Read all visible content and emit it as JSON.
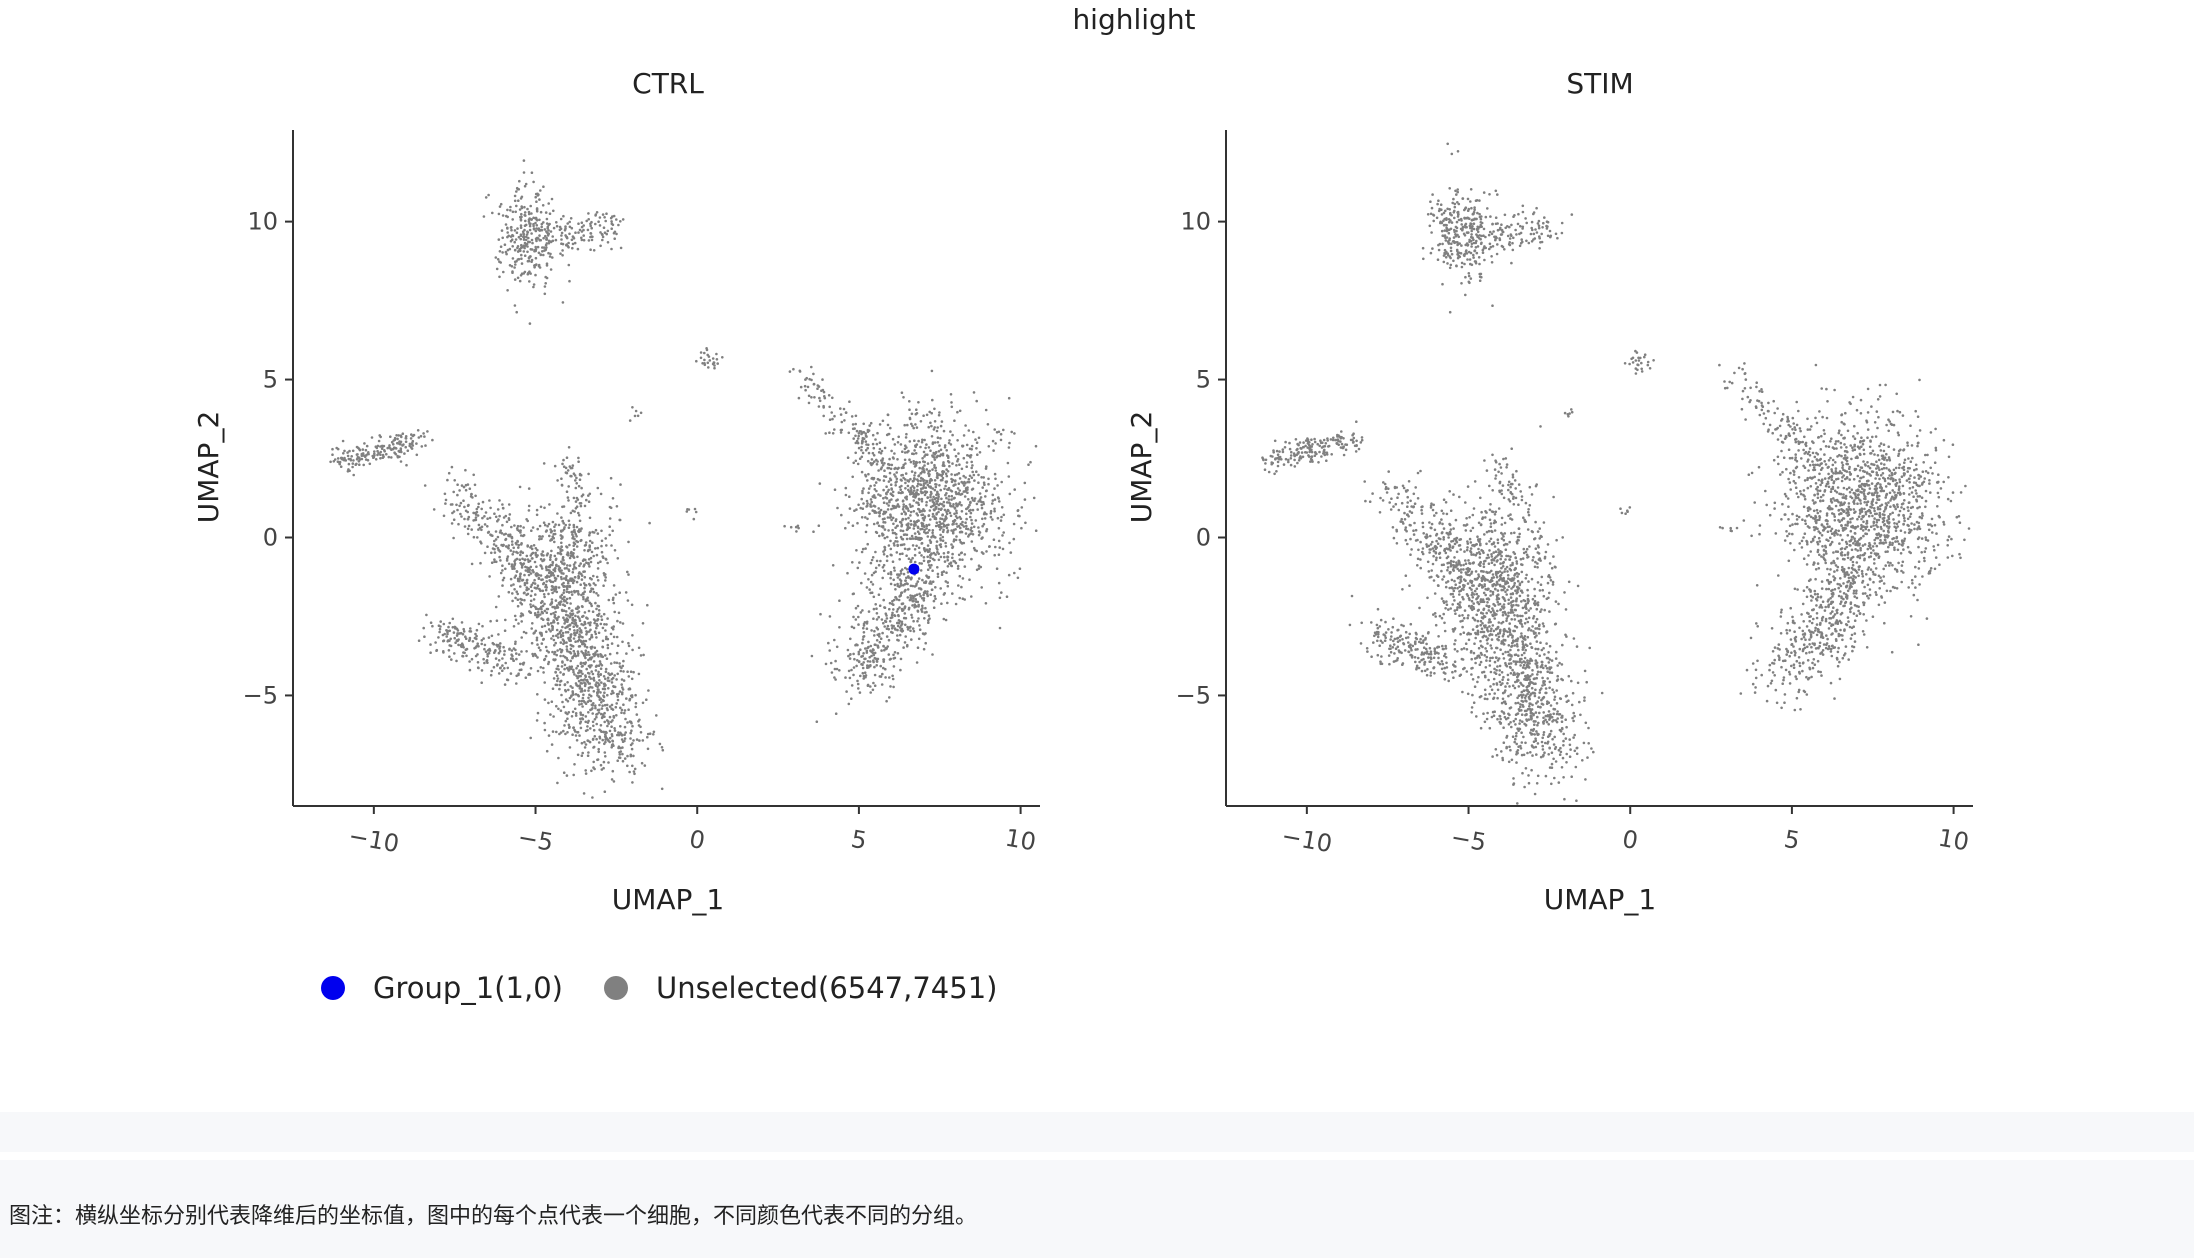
{
  "chart_data": {
    "type": "scatter",
    "title": "highlight",
    "panels": [
      {
        "name": "CTRL",
        "xlabel": "UMAP_1",
        "ylabel": "UMAP_2",
        "xlim": [
          -12.5,
          10.6
        ],
        "ylim": [
          -8.5,
          12.9
        ],
        "xticks": [
          -10,
          -5,
          0,
          5,
          10
        ],
        "yticks": [
          -5,
          0,
          5,
          10
        ],
        "highlight_points": [
          [
            6.7,
            -1.0
          ]
        ]
      },
      {
        "name": "STIM",
        "xlabel": "UMAP_1",
        "ylabel": "UMAP_2",
        "xlim": [
          -12.5,
          10.6
        ],
        "ylim": [
          -8.5,
          12.9
        ],
        "xticks": [
          -10,
          -5,
          0,
          5,
          10
        ],
        "yticks": [
          -5,
          0,
          5,
          10
        ],
        "highlight_points": []
      }
    ],
    "legend": [
      {
        "label": "Group_1(1,0)",
        "color": "#0000ee"
      },
      {
        "label": "Unselected(6547,7451)",
        "color": "#808080"
      }
    ],
    "legend_position": "bottom-left",
    "grid": false
  },
  "caption": "图注：横纵坐标分别代表降维后的坐标值，图中的每个点代表一个细胞，不同颜色代表不同的分组。"
}
